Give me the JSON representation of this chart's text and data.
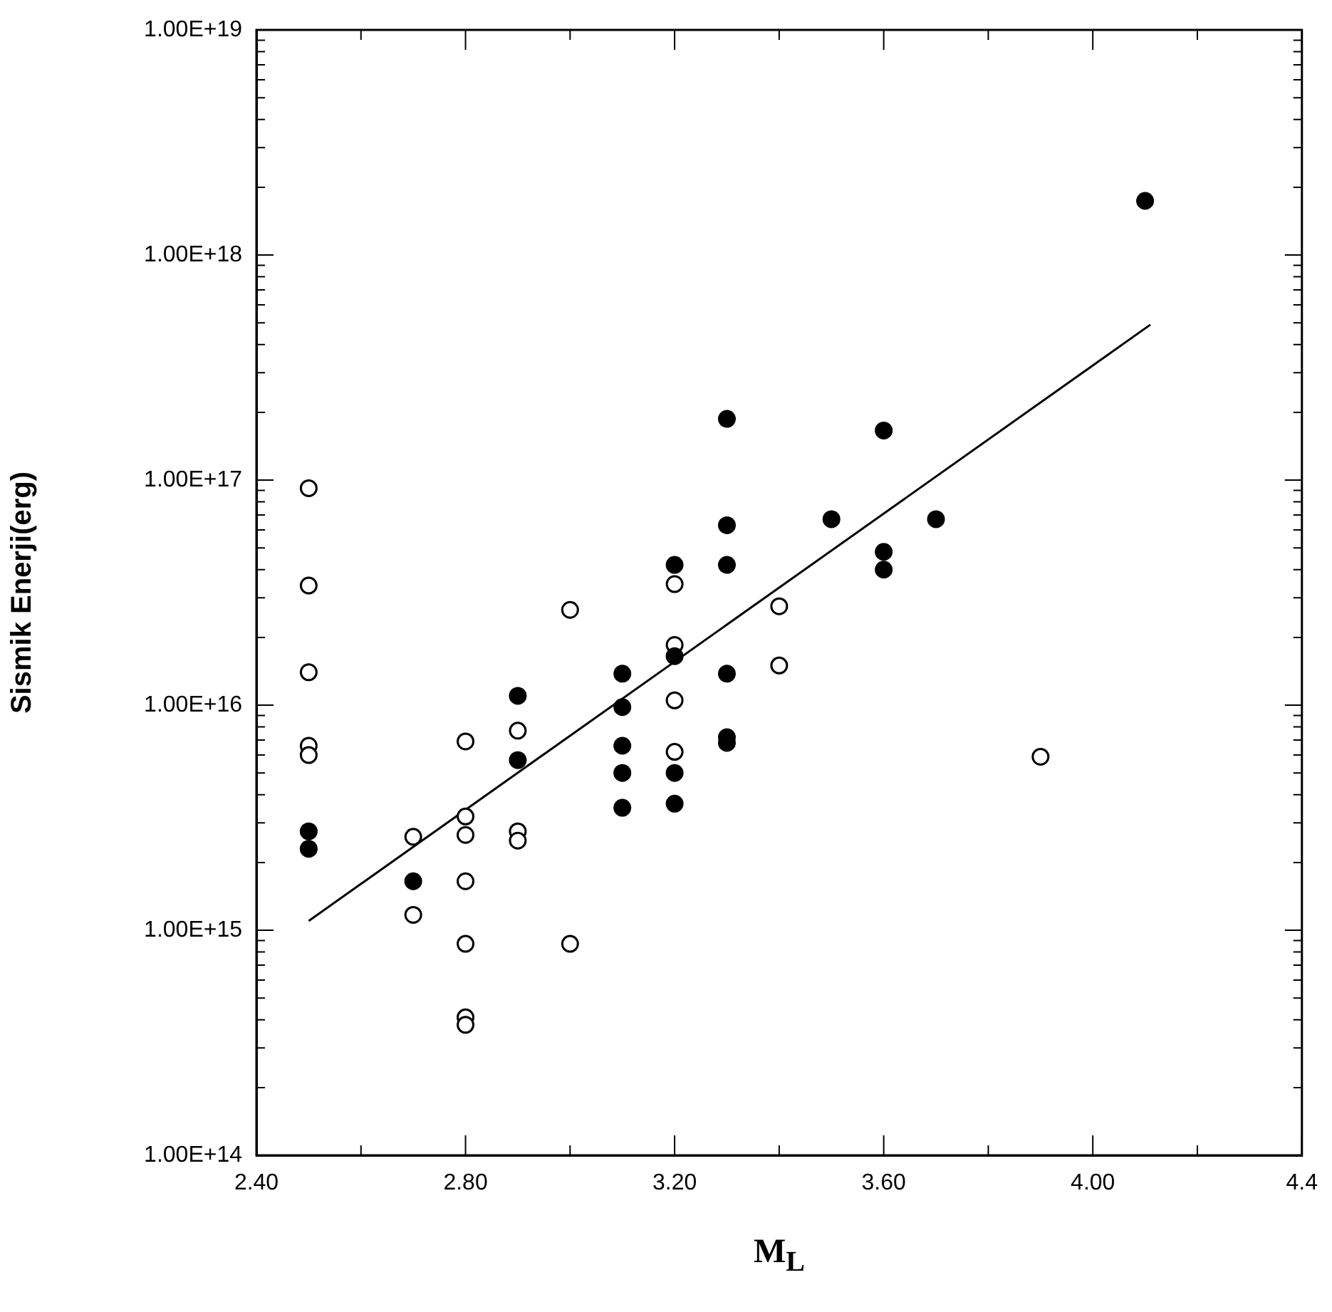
{
  "chart_data": {
    "type": "scatter",
    "xlabel": "M$_{L}$",
    "ylabel": "Sismik Enerji(erg)",
    "log": "y",
    "marker": "circle",
    "xlim": [
      2.4,
      4.4
    ],
    "xticks": [
      {
        "value": 2.4,
        "label": "2.40"
      },
      {
        "value": 2.6,
        "label": null
      },
      {
        "value": 2.8,
        "label": "2.80"
      },
      {
        "value": 3.0,
        "label": null
      },
      {
        "value": 3.2,
        "label": "3.20"
      },
      {
        "value": 3.4,
        "label": null
      },
      {
        "value": 3.6,
        "label": "3.60"
      },
      {
        "value": 3.8,
        "label": null
      },
      {
        "value": 4.0,
        "label": "4.00"
      },
      {
        "value": 4.2,
        "label": null
      },
      {
        "value": 4.4,
        "label": "4.4"
      }
    ],
    "ylim": [
      100000000000000.0,
      1e+19
    ],
    "yticks": [
      {
        "value": 100000000000000.0,
        "label": "1.00E+14"
      },
      {
        "value": 200000000000000.0,
        "label": null
      },
      {
        "value": 300000000000000.0,
        "label": null
      },
      {
        "value": 400000000000000.0,
        "label": null
      },
      {
        "value": 500000000000000.0,
        "label": null
      },
      {
        "value": 600000000000000.0,
        "label": null
      },
      {
        "value": 700000000000000.0,
        "label": null
      },
      {
        "value": 800000000000000.0,
        "label": null
      },
      {
        "value": 900000000000000.0,
        "label": null
      },
      {
        "value": 1000000000000000.0,
        "label": "1.00E+15"
      },
      {
        "value": 2000000000000000.0,
        "label": null
      },
      {
        "value": 3000000000000000.0,
        "label": null
      },
      {
        "value": 4000000000000000.0,
        "label": null
      },
      {
        "value": 5000000000000000.0,
        "label": null
      },
      {
        "value": 6000000000000000.0,
        "label": null
      },
      {
        "value": 7000000000000000.0,
        "label": null
      },
      {
        "value": 8000000000000000.0,
        "label": null
      },
      {
        "value": 9000000000000000.0,
        "label": null
      },
      {
        "value": 1e+16,
        "label": "1.00E+16"
      },
      {
        "value": 2e+16,
        "label": null
      },
      {
        "value": 3e+16,
        "label": null
      },
      {
        "value": 4e+16,
        "label": null
      },
      {
        "value": 5e+16,
        "label": null
      },
      {
        "value": 6e+16,
        "label": null
      },
      {
        "value": 7e+16,
        "label": null
      },
      {
        "value": 8e+16,
        "label": null
      },
      {
        "value": 9e+16,
        "label": null
      },
      {
        "value": 1e+17,
        "label": "1.00E+17"
      },
      {
        "value": 2e+17,
        "label": null
      },
      {
        "value": 3e+17,
        "label": null
      },
      {
        "value": 4e+17,
        "label": null
      },
      {
        "value": 5e+17,
        "label": null
      },
      {
        "value": 6e+17,
        "label": null
      },
      {
        "value": 7e+17,
        "label": null
      },
      {
        "value": 8e+17,
        "label": null
      },
      {
        "value": 9e+17,
        "label": null
      },
      {
        "value": 1e+18,
        "label": "1.00E+18"
      },
      {
        "value": 2e+18,
        "label": null
      },
      {
        "value": 3e+18,
        "label": null
      },
      {
        "value": 4e+18,
        "label": null
      },
      {
        "value": 5e+18,
        "label": null
      },
      {
        "value": 6e+18,
        "label": null
      },
      {
        "value": 7e+18,
        "label": null
      },
      {
        "value": 8e+18,
        "label": null
      },
      {
        "value": 9e+18,
        "label": null
      },
      {
        "value": 1e+19,
        "label": "1.00E+19"
      }
    ],
    "series": [
      {
        "color": "#000000",
        "x": [
          2.5,
          2.5,
          2.7,
          2.9,
          2.9,
          3.1,
          3.1,
          3.1,
          3.1,
          3.1,
          3.2,
          3.2,
          3.2,
          3.2,
          3.3,
          3.3,
          3.3,
          3.3,
          3.3,
          3.3,
          3.5,
          3.6,
          3.6,
          3.6,
          3.7,
          4.1
        ],
        "values": [
          2750000000000000.0,
          2300000000000000.0,
          1650000000000000.0,
          1.1e+16,
          5700000000000000.0,
          1.38e+16,
          9800000000000000.0,
          6600000000000000.0,
          5000000000000000.0,
          3500000000000000.0,
          4.2e+16,
          1.65e+16,
          5000000000000000.0,
          3650000000000000.0,
          1.87e+17,
          6.3e+16,
          4.2e+16,
          1.38e+16,
          7200000000000000.0,
          6800000000000000.0,
          6.7e+16,
          1.66e+17,
          4.8e+16,
          4e+16,
          6.7e+16,
          1.74e+18
        ]
      },
      {
        "color": "#ffffff",
        "x": [
          2.5,
          2.5,
          2.5,
          2.5,
          2.5,
          2.7,
          2.7,
          2.8,
          2.8,
          2.8,
          2.8,
          2.8,
          2.8,
          2.8,
          2.9,
          2.9,
          2.9,
          3.0,
          3.0,
          3.2,
          3.2,
          3.2,
          3.2,
          3.4,
          3.4,
          3.9
        ],
        "values": [
          9.2e+16,
          3.4e+16,
          1.4e+16,
          6600000000000000.0,
          6000000000000000.0,
          2600000000000000.0,
          1170000000000000.0,
          6900000000000000.0,
          3200000000000000.0,
          2650000000000000.0,
          1650000000000000.0,
          870000000000000.0,
          410000000000000.0,
          380000000000000.0,
          7700000000000000.0,
          2750000000000000.0,
          2500000000000000.0,
          2.65e+16,
          870000000000000.0,
          3.45e+16,
          1.85e+16,
          1.05e+16,
          6200000000000000.0,
          2.75e+16,
          1.5e+16,
          5900000000000000.0
        ]
      },
      {
        "type": "line",
        "color": "#000000",
        "marker": "none",
        "x": [
          2.5,
          4.11
        ],
        "values": [
          1100000000000000.0,
          4.9e+17
        ]
      }
    ]
  }
}
